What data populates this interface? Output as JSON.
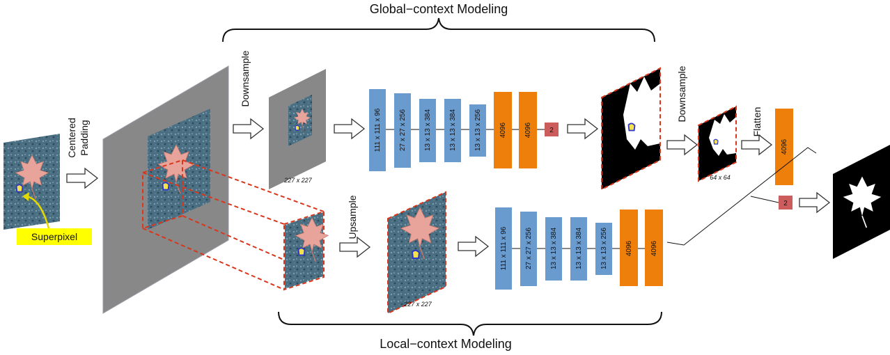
{
  "titles": {
    "global": "Global−context Modeling",
    "local": "Local−context Modeling"
  },
  "labels": {
    "centered": "Centered",
    "padding": "Padding",
    "downsample_top": "Downsample",
    "upsample": "Upsample",
    "downsample_right": "Downsample",
    "flatten": "Flatten",
    "superpixel": "Superpixel"
  },
  "dims": {
    "top_input": "227 x 227",
    "bottom_input": "227 x 227",
    "mask_small": "64 x 64"
  },
  "global_layers": [
    "111 x 111 x 96",
    "27 x 27 x 256",
    "13 x 13 x 384",
    "13 x 13 x 384",
    "13 x 13 x 256",
    "4096",
    "4096"
  ],
  "global_out": "2",
  "local_layers": [
    "111 x 111 x 96",
    "27 x 27 x 256",
    "13 x 13 x 384",
    "13 x 13 x 384",
    "13 x 13 x 256",
    "4096",
    "4096"
  ],
  "local_out": "2",
  "flatten_fc": "4096",
  "colors": {
    "conv": "#6a9bcf",
    "fc": "#ee7f0b",
    "out": "#cd5d5c",
    "padding": "#888888",
    "dashed": "#d9361c",
    "superpixel_bg": "#ffff00"
  }
}
